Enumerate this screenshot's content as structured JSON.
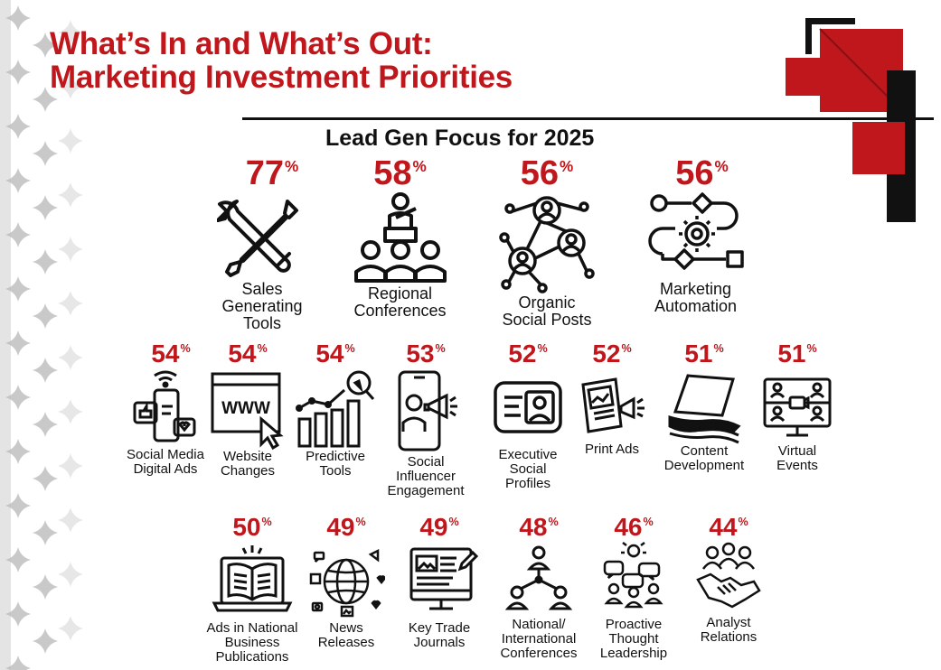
{
  "header": {
    "title_line1": "What’s In and What’s Out:",
    "title_line2": "Marketing Investment Priorities"
  },
  "subtitle": "Lead Gen Focus for 2025",
  "percent_sign": "%",
  "colors": {
    "accent": "#c0171c",
    "text": "#111111"
  },
  "row1": [
    {
      "value": "77",
      "label": "Sales\nGenerating\nTools",
      "icon": "wrench-screwdriver-icon"
    },
    {
      "value": "58",
      "label": "Regional\nConferences",
      "icon": "conference-audience-icon"
    },
    {
      "value": "56",
      "label": "Organic\nSocial Posts",
      "icon": "social-network-icon"
    },
    {
      "value": "56",
      "label": "Marketing\nAutomation",
      "icon": "automation-flow-icon"
    }
  ],
  "row2": [
    {
      "value": "54",
      "label": "Social Media\nDigital Ads",
      "icon": "social-phone-icon"
    },
    {
      "value": "54",
      "label": "Website\nChanges",
      "icon": "www-browser-icon"
    },
    {
      "value": "54",
      "label": "Predictive\nTools",
      "icon": "bar-chart-magnifier-icon"
    },
    {
      "value": "53",
      "label": "Social\nInfluencer\nEngagement",
      "icon": "influencer-megaphone-icon"
    },
    {
      "value": "52",
      "label": "Executive\nSocial\nProfiles",
      "icon": "profile-card-icon"
    },
    {
      "value": "52",
      "label": "Print Ads",
      "icon": "newspaper-icon"
    },
    {
      "value": "51",
      "label": "Content\nDevelopment",
      "icon": "paper-stack-icon"
    },
    {
      "value": "51",
      "label": "Virtual\nEvents",
      "icon": "video-conference-icon"
    }
  ],
  "row3": [
    {
      "value": "50",
      "label": "Ads in National\nBusiness\nPublications",
      "icon": "open-book-laptop-icon"
    },
    {
      "value": "49",
      "label": "News\nReleases",
      "icon": "globe-media-icon"
    },
    {
      "value": "49",
      "label": "Key Trade\nJournals",
      "icon": "monitor-document-icon"
    },
    {
      "value": "48",
      "label": "National/\nInternational\nConferences",
      "icon": "network-people-icon"
    },
    {
      "value": "46",
      "label": "Proactive\nThought\nLeadership",
      "icon": "thought-bubbles-icon"
    },
    {
      "value": "44",
      "label": "Analyst\nRelations",
      "icon": "handshake-icon"
    }
  ]
}
